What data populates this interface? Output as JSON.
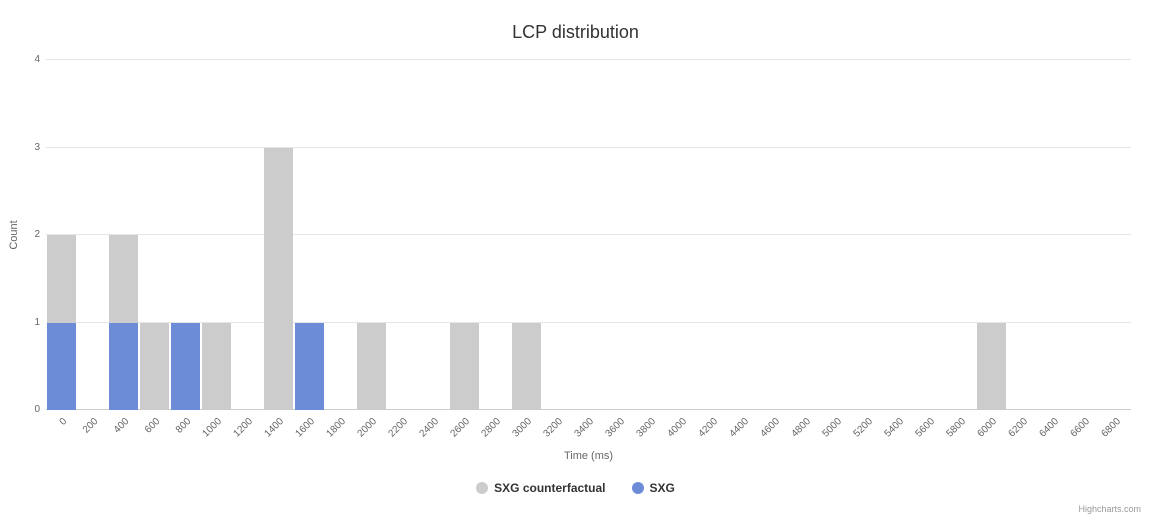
{
  "credits": "Highcharts.com",
  "chart_data": {
    "type": "bar",
    "title": "LCP distribution",
    "xlabel": "Time (ms)",
    "ylabel": "Count",
    "ylim": [
      0,
      4
    ],
    "yticks": [
      0,
      1,
      2,
      3,
      4
    ],
    "grid": true,
    "legend_position": "bottom",
    "categories": [
      "0",
      "200",
      "400",
      "600",
      "800",
      "1000",
      "1200",
      "1400",
      "1600",
      "1800",
      "2000",
      "2200",
      "2400",
      "2600",
      "2800",
      "3000",
      "3200",
      "3400",
      "3600",
      "3800",
      "4000",
      "4200",
      "4400",
      "4600",
      "4800",
      "5000",
      "5200",
      "5400",
      "5600",
      "5800",
      "6000",
      "6200",
      "6400",
      "6600",
      "6800"
    ],
    "series": [
      {
        "name": "SXG counterfactual",
        "color": "#cccccc",
        "values": [
          2,
          0,
          2,
          1,
          0,
          1,
          0,
          3,
          0,
          0,
          1,
          0,
          0,
          1,
          0,
          1,
          0,
          0,
          0,
          0,
          0,
          0,
          0,
          0,
          0,
          0,
          0,
          0,
          0,
          0,
          1,
          0,
          0,
          0,
          0
        ]
      },
      {
        "name": "SXG",
        "color": "#6d8cd8",
        "values": [
          1,
          0,
          1,
          0,
          1,
          0,
          0,
          0,
          1,
          0,
          0,
          0,
          0,
          0,
          0,
          0,
          0,
          0,
          0,
          0,
          0,
          0,
          0,
          0,
          0,
          0,
          0,
          0,
          0,
          0,
          0,
          0,
          0,
          0,
          0
        ]
      }
    ]
  }
}
